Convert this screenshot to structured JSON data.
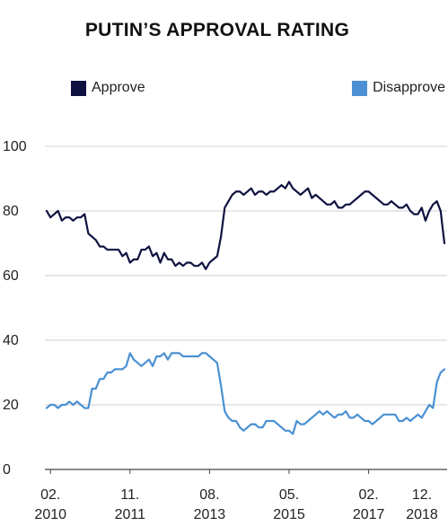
{
  "chart_data": {
    "type": "line",
    "title": "PUTIN’S APPROVAL RATING",
    "xlabel": "",
    "ylabel": "",
    "ylim": [
      0,
      100
    ],
    "yticks": [
      0,
      20,
      40,
      60,
      80,
      100
    ],
    "xlim": [
      "2010-01",
      "2018-10"
    ],
    "xticks": [
      {
        "date": "2010-02",
        "month": "02.",
        "year": "2010"
      },
      {
        "date": "2011-11",
        "month": "11.",
        "year": "2011"
      },
      {
        "date": "2013-08",
        "month": "08.",
        "year": "2013"
      },
      {
        "date": "2015-05",
        "month": "05.",
        "year": "2015"
      },
      {
        "date": "2017-02",
        "month": "02.",
        "year": "2017"
      },
      {
        "date": "2018-12",
        "month": "12.",
        "year": "2018"
      }
    ],
    "grid": "horizontal",
    "legend_position": "top",
    "series": [
      {
        "name": "Approve",
        "color": "#0f1240",
        "x": [
          "2010-01",
          "2010-02",
          "2010-03",
          "2010-04",
          "2010-05",
          "2010-06",
          "2010-07",
          "2010-08",
          "2010-09",
          "2010-10",
          "2010-11",
          "2010-12",
          "2011-01",
          "2011-02",
          "2011-03",
          "2011-04",
          "2011-05",
          "2011-06",
          "2011-07",
          "2011-08",
          "2011-09",
          "2011-10",
          "2011-11",
          "2011-12",
          "2012-01",
          "2012-02",
          "2012-03",
          "2012-04",
          "2012-05",
          "2012-06",
          "2012-07",
          "2012-08",
          "2012-09",
          "2012-10",
          "2012-11",
          "2012-12",
          "2013-01",
          "2013-02",
          "2013-03",
          "2013-04",
          "2013-05",
          "2013-06",
          "2013-07",
          "2013-08",
          "2013-09",
          "2013-10",
          "2013-11",
          "2013-12",
          "2014-01",
          "2014-02",
          "2014-03",
          "2014-04",
          "2014-05",
          "2014-06",
          "2014-07",
          "2014-08",
          "2014-09",
          "2014-10",
          "2014-11",
          "2014-12",
          "2015-01",
          "2015-02",
          "2015-03",
          "2015-04",
          "2015-05",
          "2015-06",
          "2015-07",
          "2015-08",
          "2015-09",
          "2015-10",
          "2015-11",
          "2015-12",
          "2016-01",
          "2016-02",
          "2016-03",
          "2016-04",
          "2016-05",
          "2016-06",
          "2016-07",
          "2016-08",
          "2016-09",
          "2016-10",
          "2016-11",
          "2016-12",
          "2017-01",
          "2017-02",
          "2017-03",
          "2017-04",
          "2017-05",
          "2017-06",
          "2017-07",
          "2017-08",
          "2017-09",
          "2017-10",
          "2017-11",
          "2017-12",
          "2018-01",
          "2018-02",
          "2018-03",
          "2018-04",
          "2018-05",
          "2018-06",
          "2018-07",
          "2018-08",
          "2018-09",
          "2018-10"
        ],
        "values": [
          80,
          78,
          79,
          80,
          77,
          78,
          78,
          77,
          78,
          78,
          79,
          73,
          72,
          71,
          69,
          69,
          68,
          68,
          68,
          68,
          66,
          67,
          64,
          65,
          65,
          68,
          68,
          69,
          66,
          67,
          64,
          67,
          65,
          65,
          63,
          64,
          63,
          64,
          64,
          63,
          63,
          64,
          62,
          64,
          65,
          66,
          72,
          81,
          83,
          85,
          86,
          86,
          85,
          86,
          87,
          85,
          86,
          86,
          85,
          86,
          86,
          87,
          88,
          87,
          89,
          87,
          86,
          85,
          86,
          87,
          84,
          85,
          84,
          83,
          82,
          82,
          83,
          81,
          81,
          82,
          82,
          83,
          84,
          85,
          86,
          86,
          85,
          84,
          83,
          82,
          82,
          83,
          82,
          81,
          81,
          82,
          80,
          79,
          79,
          81,
          77,
          80,
          82,
          83,
          80,
          70
        ]
      },
      {
        "name": "Disapprove",
        "color": "#4a90d2",
        "x": [
          "2010-01",
          "2010-02",
          "2010-03",
          "2010-04",
          "2010-05",
          "2010-06",
          "2010-07",
          "2010-08",
          "2010-09",
          "2010-10",
          "2010-11",
          "2010-12",
          "2011-01",
          "2011-02",
          "2011-03",
          "2011-04",
          "2011-05",
          "2011-06",
          "2011-07",
          "2011-08",
          "2011-09",
          "2011-10",
          "2011-11",
          "2011-12",
          "2012-01",
          "2012-02",
          "2012-03",
          "2012-04",
          "2012-05",
          "2012-06",
          "2012-07",
          "2012-08",
          "2012-09",
          "2012-10",
          "2012-11",
          "2012-12",
          "2013-01",
          "2013-02",
          "2013-03",
          "2013-04",
          "2013-05",
          "2013-06",
          "2013-07",
          "2013-08",
          "2013-09",
          "2013-10",
          "2013-11",
          "2013-12",
          "2014-01",
          "2014-02",
          "2014-03",
          "2014-04",
          "2014-05",
          "2014-06",
          "2014-07",
          "2014-08",
          "2014-09",
          "2014-10",
          "2014-11",
          "2014-12",
          "2015-01",
          "2015-02",
          "2015-03",
          "2015-04",
          "2015-05",
          "2015-06",
          "2015-07",
          "2015-08",
          "2015-09",
          "2015-10",
          "2015-11",
          "2015-12",
          "2016-01",
          "2016-02",
          "2016-03",
          "2016-04",
          "2016-05",
          "2016-06",
          "2016-07",
          "2016-08",
          "2016-09",
          "2016-10",
          "2016-11",
          "2016-12",
          "2017-01",
          "2017-02",
          "2017-03",
          "2017-04",
          "2017-05",
          "2017-06",
          "2017-07",
          "2017-08",
          "2017-09",
          "2017-10",
          "2017-11",
          "2017-12",
          "2018-01",
          "2018-02",
          "2018-03",
          "2018-04",
          "2018-05",
          "2018-06",
          "2018-07",
          "2018-08",
          "2018-09",
          "2018-10"
        ],
        "values": [
          19,
          20,
          20,
          19,
          20,
          20,
          21,
          20,
          21,
          20,
          19,
          19,
          25,
          25,
          28,
          28,
          30,
          30,
          31,
          31,
          31,
          32,
          36,
          34,
          33,
          32,
          33,
          34,
          32,
          35,
          35,
          36,
          34,
          36,
          36,
          36,
          35,
          35,
          35,
          35,
          35,
          36,
          36,
          35,
          34,
          33,
          26,
          18,
          16,
          15,
          15,
          13,
          12,
          13,
          14,
          14,
          13,
          13,
          15,
          15,
          15,
          14,
          13,
          12,
          12,
          11,
          15,
          14,
          14,
          15,
          16,
          17,
          18,
          17,
          18,
          17,
          16,
          17,
          17,
          18,
          16,
          16,
          17,
          16,
          15,
          15,
          14,
          15,
          16,
          17,
          17,
          17,
          17,
          15,
          15,
          16,
          15,
          16,
          17,
          16,
          18,
          20,
          19,
          27,
          30,
          31
        ]
      }
    ]
  },
  "legend": {
    "approve_label": "Approve",
    "disapprove_label": "Disapprove"
  }
}
